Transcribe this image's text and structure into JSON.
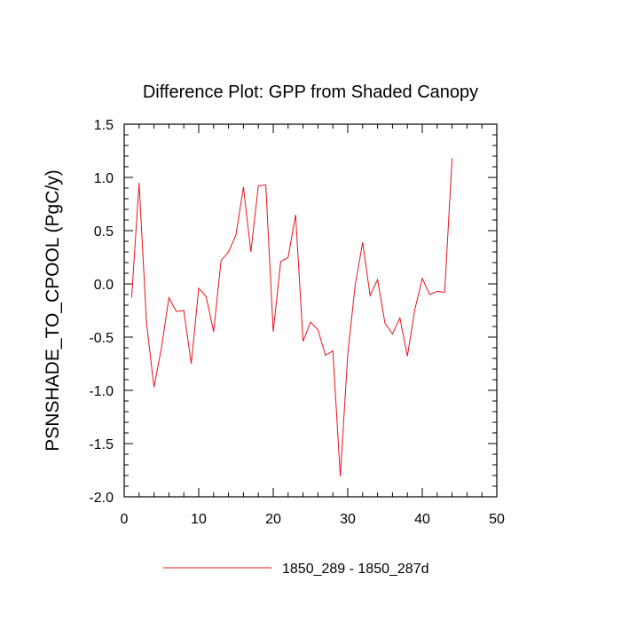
{
  "chart_data": {
    "type": "line",
    "title": "Difference Plot: GPP from Shaded Canopy",
    "xlabel": "",
    "ylabel": "PSNSHADE_TO_CPOOL  (PgC/y)",
    "xlim": [
      0,
      50
    ],
    "ylim": [
      -2.0,
      1.5
    ],
    "x_ticks": [
      0,
      10,
      20,
      30,
      40,
      50
    ],
    "x_tick_labels": [
      "0",
      "10",
      "20",
      "30",
      "40",
      "50"
    ],
    "y_ticks": [
      -2.0,
      -1.5,
      -1.0,
      -0.5,
      0.0,
      0.5,
      1.0,
      1.5
    ],
    "y_tick_labels": [
      "-2.0",
      "-1.5",
      "-1.0",
      "-0.5",
      "0.0",
      "0.5",
      "1.0",
      "1.5"
    ],
    "grid": false,
    "legend_position": "bottom-center",
    "series": [
      {
        "name": "1850_289 - 1850_287d",
        "color": "#e8121b",
        "x": [
          1,
          2,
          3,
          4,
          5,
          6,
          7,
          8,
          9,
          10,
          11,
          12,
          13,
          14,
          15,
          16,
          17,
          18,
          19,
          20,
          21,
          22,
          23,
          24,
          25,
          26,
          27,
          28,
          29,
          30,
          31,
          32,
          33,
          34,
          35,
          36,
          37,
          38,
          39,
          40,
          41,
          42,
          43,
          44
        ],
        "values": [
          -0.13,
          0.95,
          -0.37,
          -0.97,
          -0.6,
          -0.13,
          -0.26,
          -0.25,
          -0.75,
          -0.04,
          -0.12,
          -0.45,
          0.22,
          0.3,
          0.46,
          0.91,
          0.3,
          0.92,
          0.93,
          -0.45,
          0.21,
          0.25,
          0.65,
          -0.54,
          -0.36,
          -0.43,
          -0.67,
          -0.63,
          -1.81,
          -0.66,
          -0.01,
          0.39,
          -0.11,
          0.04,
          -0.37,
          -0.47,
          -0.32,
          -0.68,
          -0.24,
          0.05,
          -0.1,
          -0.07,
          -0.08,
          1.18
        ]
      }
    ]
  }
}
